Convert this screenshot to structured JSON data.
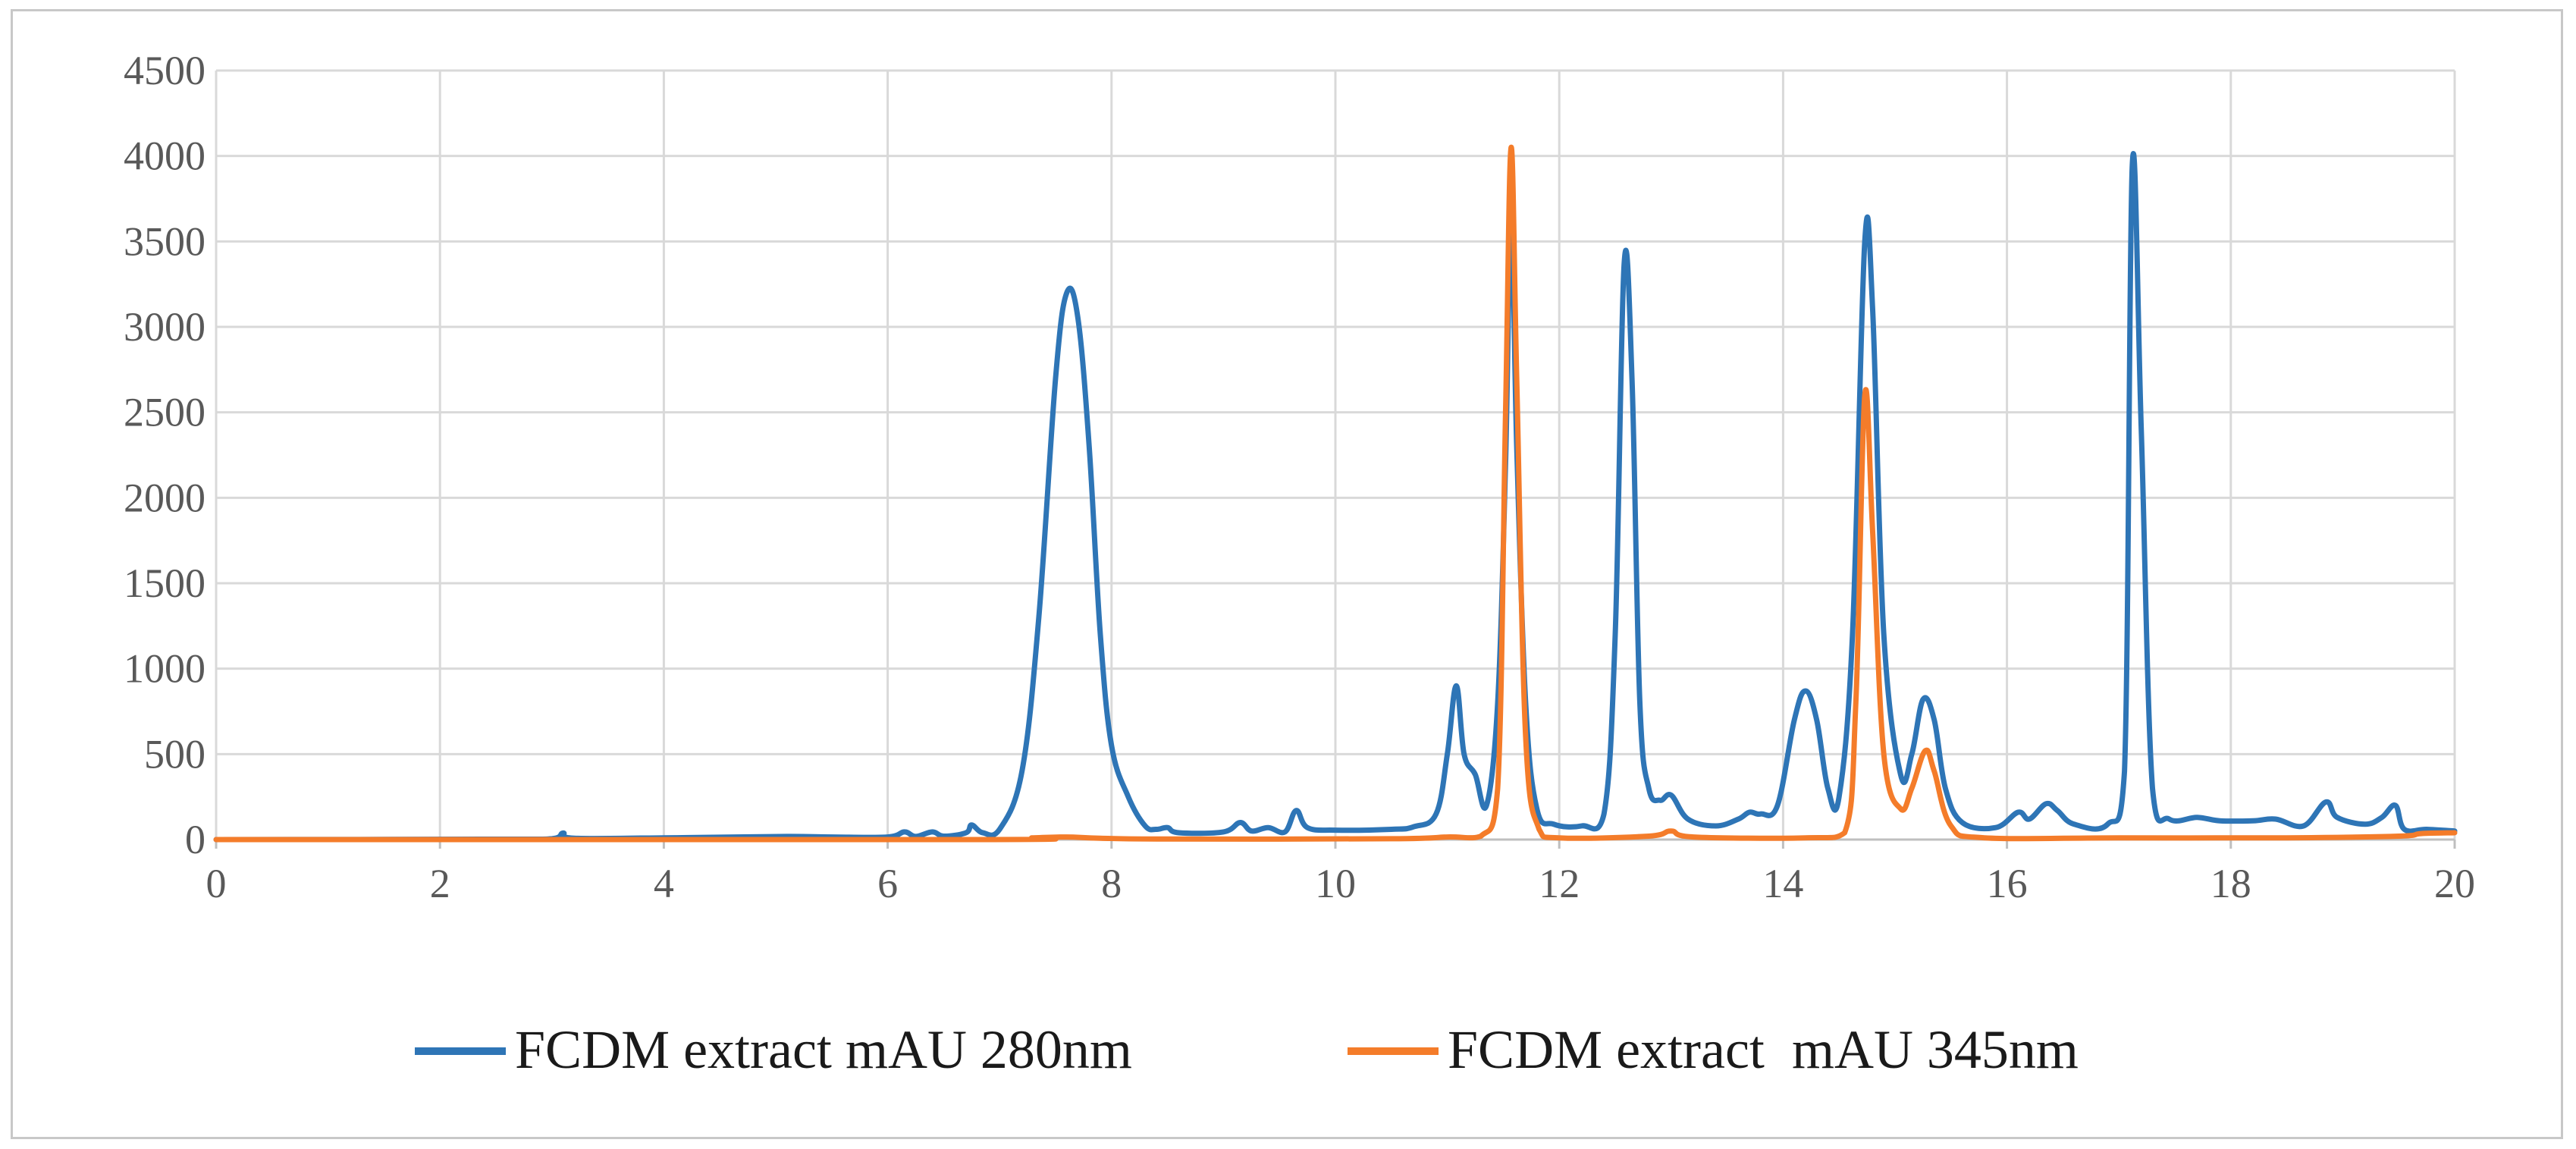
{
  "chart_data": {
    "type": "line",
    "title": "",
    "xlabel": "",
    "ylabel": "",
    "xlim": [
      0,
      20
    ],
    "ylim": [
      0,
      4500
    ],
    "x_ticks": [
      "0",
      "2",
      "4",
      "6",
      "8",
      "10",
      "12",
      "14",
      "16",
      "18",
      "20"
    ],
    "y_ticks": [
      "0",
      "500",
      "1000",
      "1500",
      "2000",
      "2500",
      "3000",
      "3500",
      "4000",
      "4500"
    ],
    "grid": true,
    "legend_position": "bottom",
    "series": [
      {
        "name": "FCDM extract mAU 280nm",
        "color": "#2E75B6",
        "points": [
          [
            0,
            0
          ],
          [
            2.5,
            2
          ],
          [
            3.0,
            5
          ],
          [
            3.1,
            38
          ],
          [
            3.2,
            8
          ],
          [
            4.0,
            10
          ],
          [
            4.3,
            12
          ],
          [
            5.1,
            18
          ],
          [
            5.5,
            15
          ],
          [
            6.0,
            15
          ],
          [
            6.15,
            45
          ],
          [
            6.25,
            18
          ],
          [
            6.4,
            45
          ],
          [
            6.5,
            20
          ],
          [
            6.7,
            40
          ],
          [
            6.75,
            85
          ],
          [
            6.85,
            40
          ],
          [
            7.0,
            60
          ],
          [
            7.2,
            400
          ],
          [
            7.35,
            1300
          ],
          [
            7.5,
            2700
          ],
          [
            7.6,
            3200
          ],
          [
            7.7,
            3050
          ],
          [
            7.8,
            2300
          ],
          [
            7.9,
            1200
          ],
          [
            8.0,
            550
          ],
          [
            8.15,
            250
          ],
          [
            8.3,
            80
          ],
          [
            8.4,
            60
          ],
          [
            8.5,
            70
          ],
          [
            8.6,
            40
          ],
          [
            9.0,
            45
          ],
          [
            9.15,
            100
          ],
          [
            9.25,
            50
          ],
          [
            9.4,
            70
          ],
          [
            9.55,
            45
          ],
          [
            9.65,
            170
          ],
          [
            9.75,
            70
          ],
          [
            10.0,
            55
          ],
          [
            10.5,
            60
          ],
          [
            10.7,
            75
          ],
          [
            10.9,
            150
          ],
          [
            11.0,
            500
          ],
          [
            11.08,
            900
          ],
          [
            11.15,
            500
          ],
          [
            11.25,
            380
          ],
          [
            11.35,
            200
          ],
          [
            11.45,
            800
          ],
          [
            11.52,
            2200
          ],
          [
            11.57,
            3650
          ],
          [
            11.62,
            2300
          ],
          [
            11.7,
            800
          ],
          [
            11.8,
            180
          ],
          [
            11.95,
            90
          ],
          [
            12.2,
            80
          ],
          [
            12.4,
            150
          ],
          [
            12.5,
            1200
          ],
          [
            12.58,
            3370
          ],
          [
            12.65,
            2700
          ],
          [
            12.72,
            800
          ],
          [
            12.8,
            300
          ],
          [
            12.9,
            230
          ],
          [
            13.0,
            260
          ],
          [
            13.15,
            120
          ],
          [
            13.4,
            80
          ],
          [
            13.6,
            120
          ],
          [
            13.7,
            160
          ],
          [
            13.8,
            150
          ],
          [
            13.95,
            200
          ],
          [
            14.1,
            700
          ],
          [
            14.2,
            870
          ],
          [
            14.3,
            700
          ],
          [
            14.4,
            300
          ],
          [
            14.5,
            250
          ],
          [
            14.62,
            1200
          ],
          [
            14.73,
            3500
          ],
          [
            14.8,
            3100
          ],
          [
            14.9,
            1200
          ],
          [
            15.05,
            380
          ],
          [
            15.15,
            500
          ],
          [
            15.25,
            820
          ],
          [
            15.35,
            700
          ],
          [
            15.45,
            300
          ],
          [
            15.6,
            100
          ],
          [
            15.9,
            70
          ],
          [
            16.1,
            160
          ],
          [
            16.2,
            120
          ],
          [
            16.35,
            210
          ],
          [
            16.45,
            170
          ],
          [
            16.6,
            90
          ],
          [
            16.9,
            90
          ],
          [
            17.05,
            400
          ],
          [
            17.12,
            3950
          ],
          [
            17.2,
            2400
          ],
          [
            17.3,
            300
          ],
          [
            17.45,
            120
          ],
          [
            17.7,
            130
          ],
          [
            17.9,
            110
          ],
          [
            18.2,
            110
          ],
          [
            18.4,
            120
          ],
          [
            18.65,
            80
          ],
          [
            18.85,
            220
          ],
          [
            18.95,
            130
          ],
          [
            19.2,
            90
          ],
          [
            19.35,
            130
          ],
          [
            19.47,
            200
          ],
          [
            19.55,
            60
          ],
          [
            19.75,
            60
          ],
          [
            20.0,
            50
          ]
        ]
      },
      {
        "name": "FCDM extract  mAU 345nm",
        "color": "#F47C2A",
        "points": [
          [
            0,
            0
          ],
          [
            6.8,
            0
          ],
          [
            7.3,
            10
          ],
          [
            7.6,
            15
          ],
          [
            7.9,
            8
          ],
          [
            8.5,
            3
          ],
          [
            10.5,
            5
          ],
          [
            11.0,
            15
          ],
          [
            11.3,
            20
          ],
          [
            11.45,
            300
          ],
          [
            11.52,
            2500
          ],
          [
            11.57,
            4050
          ],
          [
            11.62,
            2700
          ],
          [
            11.7,
            600
          ],
          [
            11.82,
            60
          ],
          [
            12.0,
            10
          ],
          [
            12.8,
            20
          ],
          [
            13.0,
            50
          ],
          [
            13.2,
            15
          ],
          [
            14.2,
            10
          ],
          [
            14.55,
            40
          ],
          [
            14.65,
            800
          ],
          [
            14.73,
            2600
          ],
          [
            14.8,
            1800
          ],
          [
            14.9,
            500
          ],
          [
            15.05,
            180
          ],
          [
            15.15,
            300
          ],
          [
            15.27,
            520
          ],
          [
            15.35,
            400
          ],
          [
            15.5,
            80
          ],
          [
            15.8,
            10
          ],
          [
            17.0,
            10
          ],
          [
            18.5,
            10
          ],
          [
            19.5,
            20
          ],
          [
            19.7,
            35
          ],
          [
            20.0,
            40
          ]
        ]
      }
    ]
  }
}
